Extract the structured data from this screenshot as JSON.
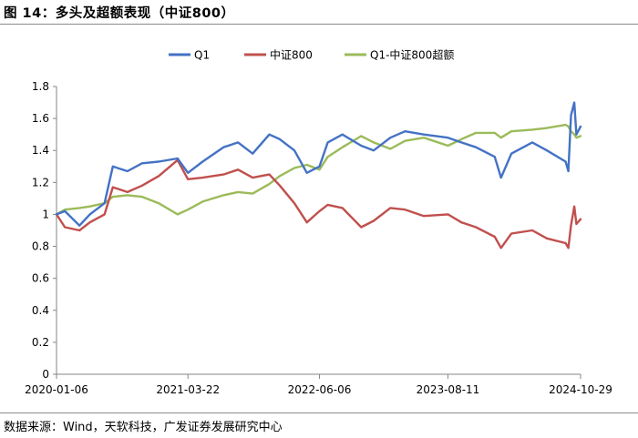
{
  "figure": {
    "title": "图 14：多头及超额表现（中证800）",
    "source": "数据来源：Wind，天软科技，广发证券发展研究中心"
  },
  "chart_data": {
    "type": "line",
    "ylim": [
      0,
      1.8
    ],
    "yticks": [
      "0",
      "0.2",
      "0.4",
      "0.6",
      "0.8",
      "1",
      "1.2",
      "1.4",
      "1.6",
      "1.8"
    ],
    "xticks": [
      "2020-01-06",
      "2021-03-22",
      "2022-06-06",
      "2023-08-11",
      "2024-10-29"
    ],
    "grid": false,
    "legend_position": "top-center",
    "series": [
      {
        "name": "Q1",
        "color": "#4472C4",
        "points": [
          [
            "2020-01-06",
            1.0
          ],
          [
            "2020-02-03",
            1.02
          ],
          [
            "2020-03-23",
            0.93
          ],
          [
            "2020-04-27",
            1.0
          ],
          [
            "2020-06-15",
            1.07
          ],
          [
            "2020-07-13",
            1.3
          ],
          [
            "2020-08-31",
            1.27
          ],
          [
            "2020-10-19",
            1.32
          ],
          [
            "2020-12-14",
            1.33
          ],
          [
            "2021-02-15",
            1.35
          ],
          [
            "2021-03-22",
            1.26
          ],
          [
            "2021-05-10",
            1.33
          ],
          [
            "2021-07-19",
            1.42
          ],
          [
            "2021-09-06",
            1.45
          ],
          [
            "2021-10-25",
            1.38
          ],
          [
            "2021-12-20",
            1.5
          ],
          [
            "2022-01-24",
            1.47
          ],
          [
            "2022-03-14",
            1.4
          ],
          [
            "2022-04-25",
            1.26
          ],
          [
            "2022-06-06",
            1.3
          ],
          [
            "2022-07-04",
            1.45
          ],
          [
            "2022-08-22",
            1.5
          ],
          [
            "2022-10-24",
            1.43
          ],
          [
            "2022-12-05",
            1.4
          ],
          [
            "2023-01-30",
            1.48
          ],
          [
            "2023-03-20",
            1.52
          ],
          [
            "2023-05-22",
            1.5
          ],
          [
            "2023-08-11",
            1.48
          ],
          [
            "2023-09-25",
            1.45
          ],
          [
            "2023-11-13",
            1.42
          ],
          [
            "2024-01-15",
            1.36
          ],
          [
            "2024-02-05",
            1.23
          ],
          [
            "2024-03-11",
            1.38
          ],
          [
            "2024-05-20",
            1.45
          ],
          [
            "2024-07-08",
            1.4
          ],
          [
            "2024-09-09",
            1.33
          ],
          [
            "2024-09-18",
            1.27
          ],
          [
            "2024-09-27",
            1.62
          ],
          [
            "2024-10-08",
            1.7
          ],
          [
            "2024-10-15",
            1.5
          ],
          [
            "2024-10-29",
            1.55
          ]
        ]
      },
      {
        "name": "中证800",
        "color": "#C0504D",
        "points": [
          [
            "2020-01-06",
            1.0
          ],
          [
            "2020-02-03",
            0.92
          ],
          [
            "2020-03-23",
            0.9
          ],
          [
            "2020-04-27",
            0.95
          ],
          [
            "2020-06-15",
            1.0
          ],
          [
            "2020-07-13",
            1.17
          ],
          [
            "2020-08-31",
            1.14
          ],
          [
            "2020-10-19",
            1.18
          ],
          [
            "2020-12-14",
            1.24
          ],
          [
            "2021-02-15",
            1.34
          ],
          [
            "2021-03-22",
            1.22
          ],
          [
            "2021-05-10",
            1.23
          ],
          [
            "2021-07-19",
            1.25
          ],
          [
            "2021-09-06",
            1.28
          ],
          [
            "2021-10-25",
            1.23
          ],
          [
            "2021-12-20",
            1.25
          ],
          [
            "2022-01-24",
            1.18
          ],
          [
            "2022-03-14",
            1.07
          ],
          [
            "2022-04-25",
            0.95
          ],
          [
            "2022-06-06",
            1.02
          ],
          [
            "2022-07-04",
            1.06
          ],
          [
            "2022-08-22",
            1.04
          ],
          [
            "2022-10-24",
            0.92
          ],
          [
            "2022-12-05",
            0.96
          ],
          [
            "2023-01-30",
            1.04
          ],
          [
            "2023-03-20",
            1.03
          ],
          [
            "2023-05-22",
            0.99
          ],
          [
            "2023-08-11",
            1.0
          ],
          [
            "2023-09-25",
            0.95
          ],
          [
            "2023-11-13",
            0.92
          ],
          [
            "2024-01-15",
            0.86
          ],
          [
            "2024-02-05",
            0.79
          ],
          [
            "2024-03-11",
            0.88
          ],
          [
            "2024-05-20",
            0.9
          ],
          [
            "2024-07-08",
            0.85
          ],
          [
            "2024-09-09",
            0.82
          ],
          [
            "2024-09-18",
            0.79
          ],
          [
            "2024-09-27",
            0.93
          ],
          [
            "2024-10-08",
            1.05
          ],
          [
            "2024-10-15",
            0.94
          ],
          [
            "2024-10-29",
            0.97
          ]
        ]
      },
      {
        "name": "Q1-中证800超额",
        "color": "#9BBB59",
        "points": [
          [
            "2020-01-06",
            1.0
          ],
          [
            "2020-02-03",
            1.03
          ],
          [
            "2020-03-23",
            1.04
          ],
          [
            "2020-04-27",
            1.05
          ],
          [
            "2020-06-15",
            1.07
          ],
          [
            "2020-07-13",
            1.11
          ],
          [
            "2020-08-31",
            1.12
          ],
          [
            "2020-10-19",
            1.11
          ],
          [
            "2020-12-14",
            1.07
          ],
          [
            "2021-02-15",
            1.0
          ],
          [
            "2021-03-22",
            1.03
          ],
          [
            "2021-05-10",
            1.08
          ],
          [
            "2021-07-19",
            1.12
          ],
          [
            "2021-09-06",
            1.14
          ],
          [
            "2021-10-25",
            1.13
          ],
          [
            "2021-12-20",
            1.19
          ],
          [
            "2022-01-24",
            1.24
          ],
          [
            "2022-03-14",
            1.29
          ],
          [
            "2022-04-25",
            1.31
          ],
          [
            "2022-06-06",
            1.28
          ],
          [
            "2022-07-04",
            1.36
          ],
          [
            "2022-08-22",
            1.42
          ],
          [
            "2022-10-24",
            1.49
          ],
          [
            "2022-12-05",
            1.45
          ],
          [
            "2023-01-30",
            1.41
          ],
          [
            "2023-03-20",
            1.46
          ],
          [
            "2023-05-22",
            1.48
          ],
          [
            "2023-08-11",
            1.43
          ],
          [
            "2023-09-25",
            1.47
          ],
          [
            "2023-11-13",
            1.51
          ],
          [
            "2024-01-15",
            1.51
          ],
          [
            "2024-02-05",
            1.48
          ],
          [
            "2024-03-11",
            1.52
          ],
          [
            "2024-05-20",
            1.53
          ],
          [
            "2024-07-08",
            1.54
          ],
          [
            "2024-09-09",
            1.56
          ],
          [
            "2024-09-18",
            1.55
          ],
          [
            "2024-09-27",
            1.52
          ],
          [
            "2024-10-08",
            1.5
          ],
          [
            "2024-10-15",
            1.48
          ],
          [
            "2024-10-29",
            1.49
          ]
        ]
      }
    ]
  }
}
